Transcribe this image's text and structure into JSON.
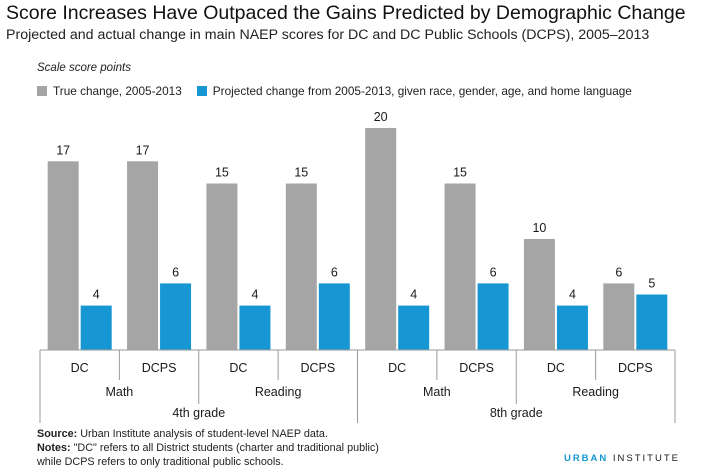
{
  "title": "Score Increases Have Outpaced the Gains Predicted by Demographic Change",
  "subtitle": "Projected and actual change in main NAEP scores for DC and DC Public Schools (DCPS), 2005–2013",
  "unit_label": "Scale score points",
  "notes": {
    "source_label": "Source:",
    "source_text": " Urban Institute analysis of student-level NAEP data.",
    "notes_label": "Notes:",
    "notes_line1": " \"DC\" refers to all District students (charter and traditional public)",
    "notes_line2": "while DCPS refers to only traditional public schools."
  },
  "brand": {
    "part1": "URBAN",
    "part2": " INSTITUTE"
  },
  "colors": {
    "true_change": "#a5a5a5",
    "projected": "#1696d2",
    "axis": "#9a9a9a",
    "label": "#1a1a1a"
  },
  "chart_data": {
    "type": "bar",
    "categories": [
      {
        "grade": "4th grade",
        "subject": "Math",
        "entity": "DC"
      },
      {
        "grade": "4th grade",
        "subject": "Math",
        "entity": "DCPS"
      },
      {
        "grade": "4th grade",
        "subject": "Reading",
        "entity": "DC"
      },
      {
        "grade": "4th grade",
        "subject": "Reading",
        "entity": "DCPS"
      },
      {
        "grade": "8th grade",
        "subject": "Math",
        "entity": "DC"
      },
      {
        "grade": "8th grade",
        "subject": "Math",
        "entity": "DCPS"
      },
      {
        "grade": "8th grade",
        "subject": "Reading",
        "entity": "DC"
      },
      {
        "grade": "8th grade",
        "subject": "Reading",
        "entity": "DCPS"
      }
    ],
    "series": [
      {
        "name": "True change, 2005-2013",
        "values": [
          17,
          17,
          15,
          15,
          20,
          15,
          10,
          6
        ]
      },
      {
        "name": "Projected change from 2005-2013, given race, gender, age, and home language",
        "values": [
          4,
          6,
          4,
          6,
          4,
          6,
          4,
          5
        ]
      }
    ],
    "ylim": [
      0,
      20
    ],
    "grid": false,
    "legend_position": "top"
  }
}
